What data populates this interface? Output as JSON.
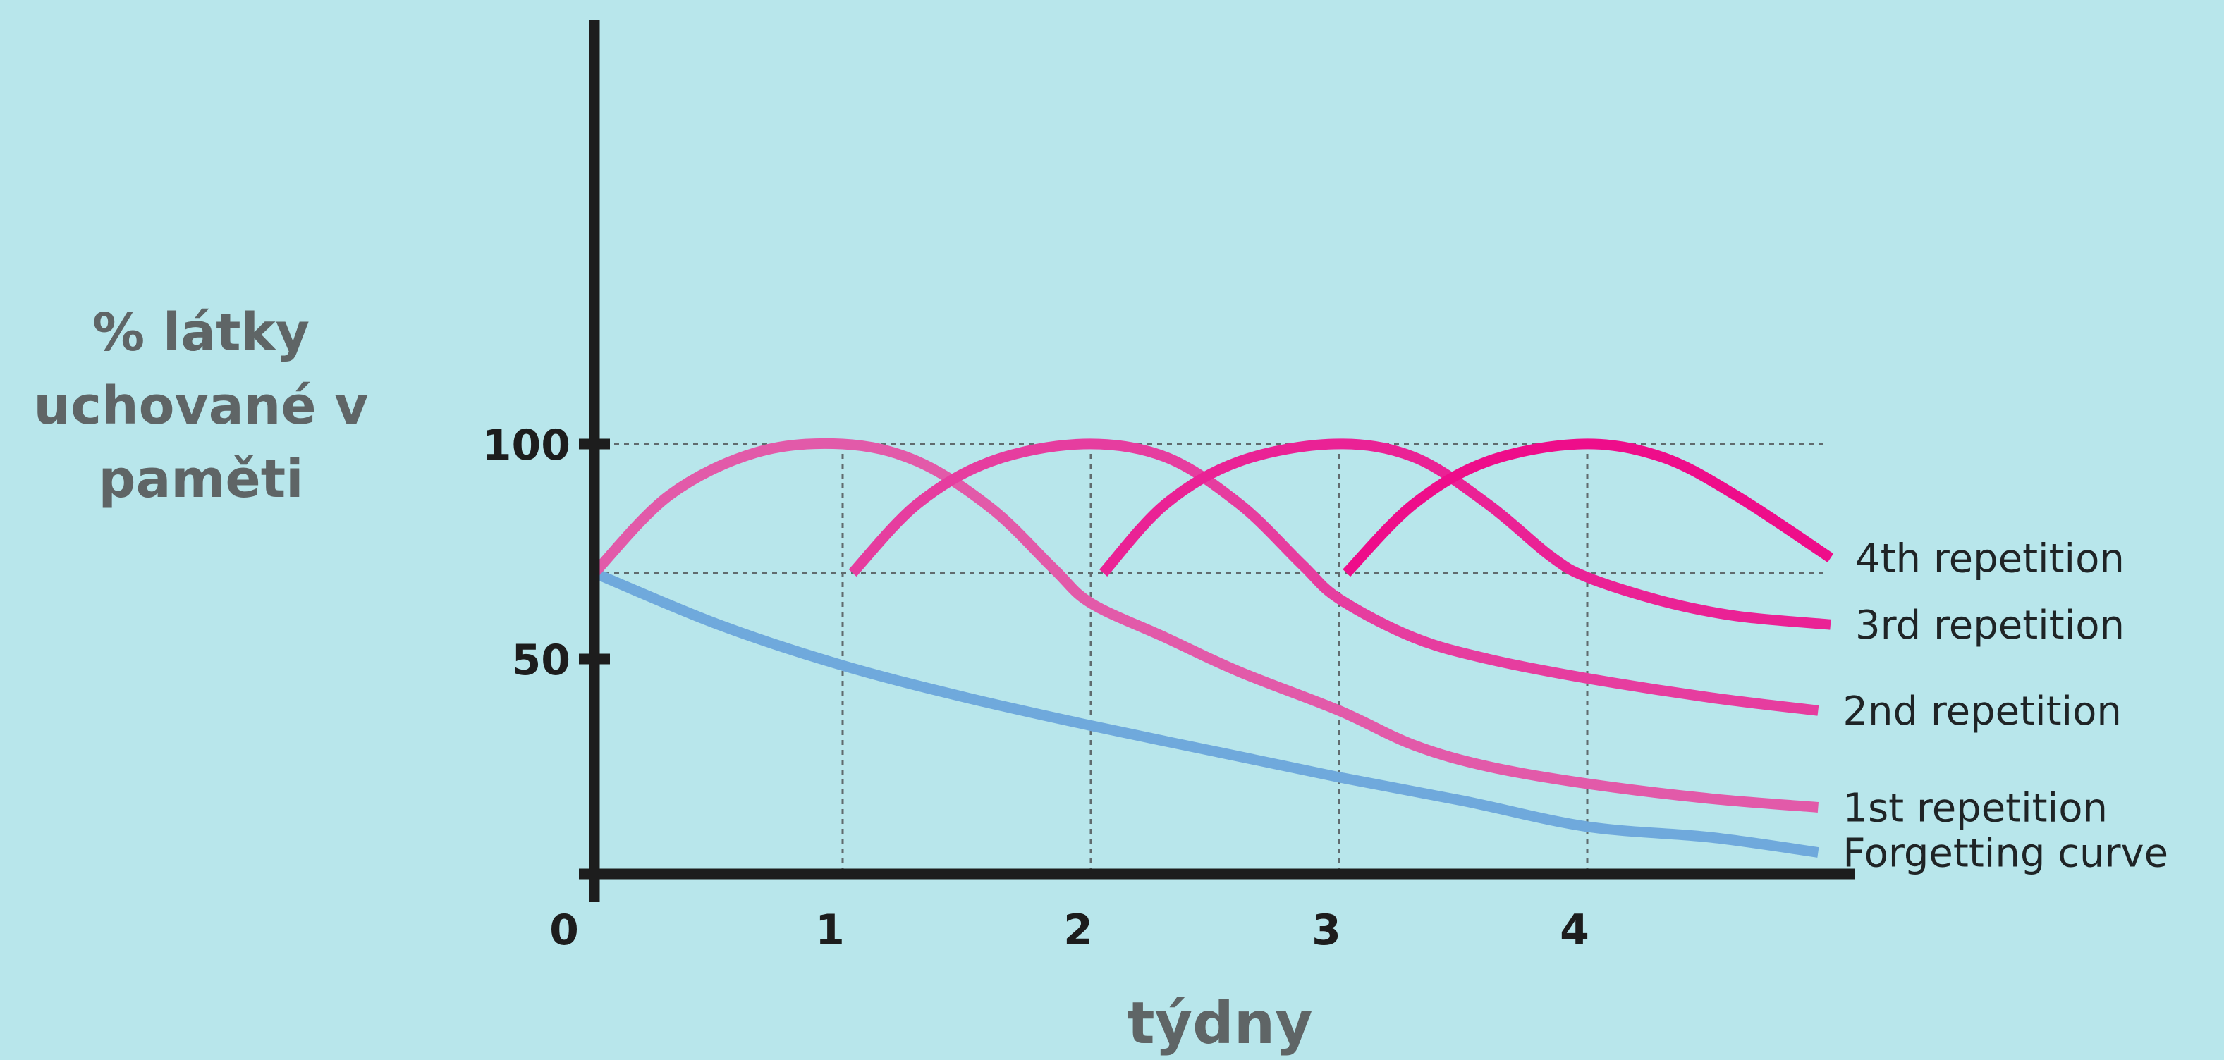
{
  "chart_data": {
    "type": "line",
    "xlabel": "týdny",
    "ylabel_lines": [
      "% látky",
      "uchované v",
      "paměti"
    ],
    "xlim": [
      0,
      5
    ],
    "ylim": [
      0,
      100
    ],
    "x_ticks": [
      {
        "value": 0,
        "label": "0"
      },
      {
        "value": 1,
        "label": "1"
      },
      {
        "value": 2,
        "label": "2"
      },
      {
        "value": 3,
        "label": "3"
      },
      {
        "value": 4,
        "label": "4"
      }
    ],
    "y_ticks": [
      {
        "value": 50,
        "label": "50"
      },
      {
        "value": 100,
        "label": "100"
      }
    ],
    "reference_lines": [
      {
        "orientation": "horizontal",
        "value": 100,
        "style": "dotted"
      },
      {
        "orientation": "horizontal",
        "value": 70,
        "style": "dotted"
      },
      {
        "orientation": "vertical",
        "value": 1,
        "style": "dotted"
      },
      {
        "orientation": "vertical",
        "value": 2,
        "style": "dotted"
      },
      {
        "orientation": "vertical",
        "value": 3,
        "style": "dotted"
      },
      {
        "orientation": "vertical",
        "value": 4,
        "style": "dotted"
      }
    ],
    "grid": false,
    "series": [
      {
        "name": "Forgetting curve",
        "color": "#6fa9dc",
        "points": [
          [
            0,
            70
          ],
          [
            0.5,
            58
          ],
          [
            1,
            48.5
          ],
          [
            1.5,
            41
          ],
          [
            2,
            34.5
          ],
          [
            2.5,
            28.5
          ],
          [
            3,
            22.5
          ],
          [
            3.5,
            17
          ],
          [
            4,
            11
          ],
          [
            4.5,
            8.5
          ],
          [
            4.93,
            5
          ]
        ]
      },
      {
        "name": "1st repetition",
        "color": "#e25aa9",
        "points": [
          [
            0,
            70
          ],
          [
            0.3,
            88
          ],
          [
            0.65,
            98
          ],
          [
            1,
            100
          ],
          [
            1.3,
            96
          ],
          [
            1.6,
            85
          ],
          [
            1.85,
            71
          ],
          [
            2,
            63
          ],
          [
            2.3,
            55
          ],
          [
            2.6,
            47
          ],
          [
            3,
            38
          ],
          [
            3.3,
            30
          ],
          [
            3.6,
            25
          ],
          [
            4,
            21
          ],
          [
            4.5,
            17.5
          ],
          [
            4.93,
            15.5
          ]
        ]
      },
      {
        "name": "2nd repetition",
        "color": "#e63d9f",
        "points": [
          [
            1.04,
            70
          ],
          [
            1.3,
            86
          ],
          [
            1.6,
            96
          ],
          [
            1.97,
            100
          ],
          [
            2.3,
            97
          ],
          [
            2.6,
            86
          ],
          [
            2.85,
            72
          ],
          [
            3,
            64
          ],
          [
            3.3,
            55
          ],
          [
            3.6,
            50
          ],
          [
            4,
            45.5
          ],
          [
            4.5,
            41
          ],
          [
            4.93,
            38
          ]
        ]
      },
      {
        "name": "3rd repetition",
        "color": "#ea2295",
        "points": [
          [
            2.05,
            70
          ],
          [
            2.3,
            86
          ],
          [
            2.6,
            96
          ],
          [
            2.98,
            100
          ],
          [
            3.3,
            97
          ],
          [
            3.6,
            86
          ],
          [
            3.85,
            74
          ],
          [
            4,
            69
          ],
          [
            4.3,
            63.5
          ],
          [
            4.6,
            60
          ],
          [
            4.98,
            58
          ]
        ]
      },
      {
        "name": "4th repetition",
        "color": "#ee0d8a",
        "points": [
          [
            3.03,
            70
          ],
          [
            3.3,
            86
          ],
          [
            3.6,
            96
          ],
          [
            3.98,
            100
          ],
          [
            4.3,
            97
          ],
          [
            4.6,
            88
          ],
          [
            4.98,
            73.5
          ]
        ]
      }
    ]
  }
}
